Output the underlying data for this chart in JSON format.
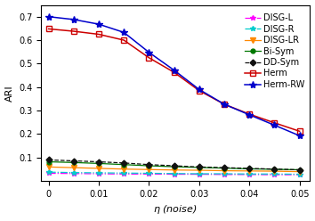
{
  "x": [
    0,
    0.005,
    0.01,
    0.015,
    0.02,
    0.025,
    0.03,
    0.035,
    0.04,
    0.045,
    0.05
  ],
  "series": {
    "DISG-L": {
      "y": [
        0.033,
        0.032,
        0.031,
        0.03,
        0.03,
        0.029,
        0.029,
        0.028,
        0.028,
        0.027,
        0.027
      ],
      "color": "#FF00FF",
      "linestyle": "-.",
      "marker": "*",
      "markersize": 4,
      "linewidth": 0.9
    },
    "DISG-R": {
      "y": [
        0.038,
        0.036,
        0.035,
        0.034,
        0.033,
        0.032,
        0.031,
        0.031,
        0.03,
        0.03,
        0.029
      ],
      "color": "#00CCCC",
      "linestyle": "-.",
      "marker": "*",
      "markersize": 4,
      "linewidth": 0.9
    },
    "DISG-LR": {
      "y": [
        0.06,
        0.057,
        0.054,
        0.051,
        0.049,
        0.047,
        0.046,
        0.044,
        0.043,
        0.042,
        0.04
      ],
      "color": "#FF8800",
      "linestyle": "-",
      "marker": "v",
      "markersize": 4,
      "linewidth": 0.9
    },
    "Bi-Sym": {
      "y": [
        0.082,
        0.079,
        0.075,
        0.07,
        0.065,
        0.061,
        0.058,
        0.055,
        0.052,
        0.05,
        0.048
      ],
      "color": "#007700",
      "linestyle": "-",
      "marker": "o",
      "markersize": 3.5,
      "linewidth": 0.9
    },
    "DD-Sym": {
      "y": [
        0.09,
        0.086,
        0.082,
        0.077,
        0.07,
        0.065,
        0.06,
        0.057,
        0.054,
        0.051,
        0.048
      ],
      "color": "#111111",
      "linestyle": "--",
      "marker": "D",
      "markersize": 3.5,
      "linewidth": 0.9
    },
    "Herm": {
      "y": [
        0.648,
        0.638,
        0.625,
        0.6,
        0.525,
        0.463,
        0.385,
        0.327,
        0.285,
        0.248,
        0.212
      ],
      "color": "#CC0000",
      "linestyle": "-",
      "marker": "s",
      "markersize": 4,
      "linewidth": 1.1,
      "markerfacecolor": "none"
    },
    "Herm-RW": {
      "y": [
        0.7,
        0.688,
        0.668,
        0.633,
        0.548,
        0.472,
        0.39,
        0.327,
        0.282,
        0.238,
        0.193
      ],
      "color": "#0000CC",
      "linestyle": "-",
      "marker": "*",
      "markersize": 6,
      "linewidth": 1.1
    }
  },
  "xlabel": "$\\eta$ (noise)",
  "ylabel": "ARI",
  "xlim": [
    -0.0015,
    0.052
  ],
  "ylim": [
    0.0,
    0.75
  ],
  "yticks": [
    0.1,
    0.2,
    0.3,
    0.4,
    0.5,
    0.6,
    0.7
  ],
  "xticks": [
    0,
    0.01,
    0.02,
    0.03,
    0.04,
    0.05
  ],
  "legend_fontsize": 7,
  "axis_fontsize": 8,
  "tick_fontsize": 7
}
